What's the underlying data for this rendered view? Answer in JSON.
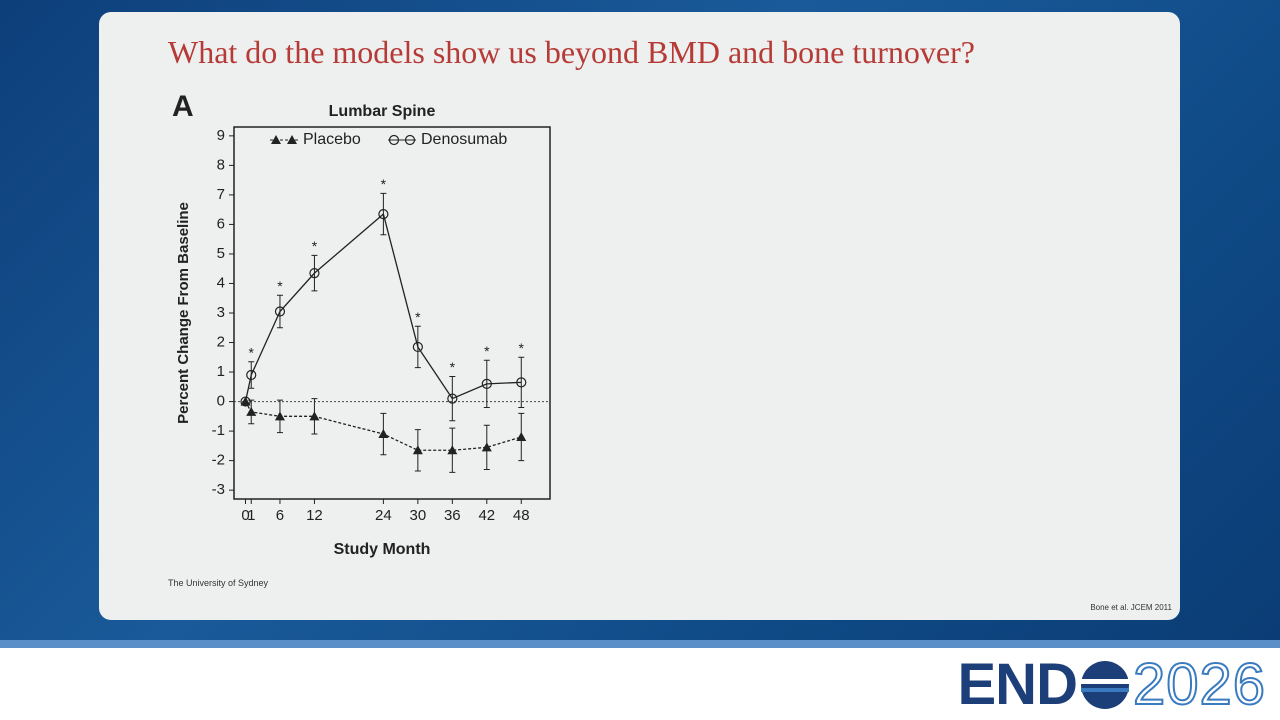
{
  "title": "What do the models show us beyond BMD and bone turnover?",
  "footer": "The University of Sydney",
  "citation": "Bone et al. JCEM 2011",
  "logo": {
    "left": "END",
    "right": "2026"
  },
  "chart_data": {
    "type": "line",
    "panel_label": "A",
    "title": "Lumbar Spine",
    "xlabel": "Study Month",
    "ylabel": "Percent Change From Baseline",
    "x": [
      0,
      1,
      6,
      12,
      24,
      30,
      36,
      42,
      48
    ],
    "series": [
      {
        "name": "Placebo",
        "color": "#222222",
        "marker": "triangle",
        "dashed": true,
        "values": [
          0,
          -0.35,
          -0.5,
          -0.5,
          -1.1,
          -1.65,
          -1.65,
          -1.55,
          -1.2
        ],
        "errors": [
          0,
          0.4,
          0.55,
          0.6,
          0.7,
          0.7,
          0.75,
          0.75,
          0.8
        ]
      },
      {
        "name": "Denosumab",
        "color": "#222222",
        "marker": "circle",
        "dashed": false,
        "values": [
          0,
          0.9,
          3.05,
          4.35,
          6.35,
          1.85,
          0.1,
          0.6,
          0.65
        ],
        "errors": [
          0,
          0.45,
          0.55,
          0.6,
          0.7,
          0.7,
          0.75,
          0.8,
          0.85
        ],
        "annotations": [
          null,
          "*",
          "*",
          "*",
          "*",
          "*",
          "*",
          "*",
          "*"
        ]
      }
    ],
    "reference_line": 0,
    "xlim": [
      -2,
      53
    ],
    "xticks": [
      0,
      1,
      6,
      12,
      24,
      30,
      36,
      42,
      48
    ],
    "ylim": [
      -3.3,
      9.3
    ],
    "yticks": [
      -3,
      -2,
      -1,
      0,
      1,
      2,
      3,
      4,
      5,
      6,
      7,
      8,
      9
    ]
  }
}
